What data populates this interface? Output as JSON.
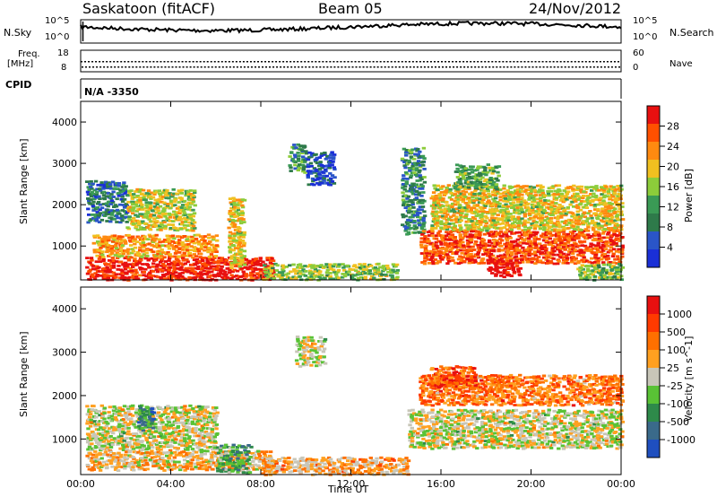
{
  "header": {
    "station": "Saskatoon (fitACF)",
    "beam": "Beam 05",
    "date": "24/Nov/2012"
  },
  "aux": {
    "nsky_label": "N.Sky",
    "nsky_ticks": [
      "10^5",
      "10^0"
    ],
    "nsearch_label": "N.Search",
    "nsearch_ticks": [
      "10^5",
      "10^0"
    ],
    "freq_label": "Freq.",
    "freq_unit": "[MHz]",
    "freq_ticks": [
      "18",
      "8"
    ],
    "nave_label": "Nave",
    "nave_ticks": [
      "60",
      "0"
    ],
    "cpid_label": "CPID",
    "cpid_value": "N/A -3350"
  },
  "colors": {
    "power": [
      "#1a2fd6",
      "#2a55c8",
      "#2e7a4a",
      "#3a9a55",
      "#8ccc3a",
      "#f0c020",
      "#ff8a10",
      "#ff5000",
      "#e81010"
    ],
    "velocity": [
      "#1f4fbf",
      "#3a6a8a",
      "#2e8a4a",
      "#59c235",
      "#c8c6b8",
      "#ffa020",
      "#ff7000",
      "#ff3a00",
      "#e81010"
    ],
    "grey": "#c8c6b8"
  },
  "chart_data": [
    {
      "type": "heatmap",
      "name": "power",
      "xlabel": "Time UT",
      "ylabel": "Slant Range [km]",
      "colorbar_label": "Power [dB]",
      "colorbar_ticks": [
        "28",
        "24",
        "20",
        "16",
        "12",
        "8",
        "4"
      ],
      "y_ticks": [
        "4000",
        "3000",
        "2000",
        "1000"
      ],
      "ylim": [
        180,
        4500
      ],
      "xlim": [
        0,
        24
      ],
      "regions": [
        {
          "t0": 0.2,
          "t1": 8.5,
          "r0": 200,
          "r1": 750,
          "level": 0.95
        },
        {
          "t0": 0.5,
          "t1": 6.0,
          "r0": 750,
          "r1": 1300,
          "level": 0.7
        },
        {
          "t0": 0.2,
          "t1": 2.0,
          "r0": 1600,
          "r1": 2600,
          "level": 0.25
        },
        {
          "t0": 2.0,
          "t1": 5.0,
          "r0": 1400,
          "r1": 2400,
          "level": 0.55
        },
        {
          "t0": 6.5,
          "t1": 7.2,
          "r0": 500,
          "r1": 2200,
          "level": 0.6
        },
        {
          "t0": 8.0,
          "t1": 14.0,
          "r0": 200,
          "r1": 600,
          "level": 0.5
        },
        {
          "t0": 9.2,
          "t1": 10.0,
          "r0": 2800,
          "r1": 3500,
          "level": 0.35
        },
        {
          "t0": 10.0,
          "t1": 11.2,
          "r0": 2500,
          "r1": 3300,
          "level": 0.15
        },
        {
          "t0": 14.2,
          "t1": 15.2,
          "r0": 1300,
          "r1": 3400,
          "level": 0.3
        },
        {
          "t0": 15.0,
          "t1": 24.0,
          "r0": 600,
          "r1": 1400,
          "level": 0.85
        },
        {
          "t0": 15.5,
          "t1": 24.0,
          "r0": 1400,
          "r1": 2500,
          "level": 0.6
        },
        {
          "t0": 16.5,
          "t1": 18.5,
          "r0": 2400,
          "r1": 3000,
          "level": 0.4
        },
        {
          "t0": 18.0,
          "t1": 19.5,
          "r0": 280,
          "r1": 700,
          "level": 1.0
        },
        {
          "t0": 22.0,
          "t1": 24.0,
          "r0": 200,
          "r1": 600,
          "level": 0.45
        }
      ]
    },
    {
      "type": "heatmap",
      "name": "velocity",
      "xlabel": "Time UT",
      "ylabel": "Slant Range [km]",
      "colorbar_label": "Velocity [m s^-1]",
      "colorbar_ticks": [
        "1000",
        "500",
        "100",
        "25",
        "-25",
        "-100",
        "-500",
        "-1000"
      ],
      "y_ticks": [
        "4000",
        "3000",
        "2000",
        "1000"
      ],
      "ylim": [
        180,
        4500
      ],
      "xlim": [
        0,
        24
      ],
      "x_ticks": [
        "00:00",
        "04:00",
        "08:00",
        "12:00",
        "16:00",
        "20:00",
        "00:00"
      ],
      "regions": [
        {
          "t0": 0.2,
          "t1": 6.0,
          "r0": 750,
          "r1": 1800,
          "level": 0.5
        },
        {
          "t0": 0.2,
          "t1": 8.5,
          "r0": 300,
          "r1": 750,
          "level": 0.58
        },
        {
          "t0": 2.5,
          "t1": 3.2,
          "r0": 1200,
          "r1": 1800,
          "level": 0.25
        },
        {
          "t0": 6.0,
          "t1": 7.5,
          "r0": 250,
          "r1": 900,
          "level": 0.35
        },
        {
          "t0": 8.0,
          "t1": 14.5,
          "r0": 200,
          "r1": 600,
          "level": 0.62
        },
        {
          "t0": 9.5,
          "t1": 10.8,
          "r0": 2700,
          "r1": 3400,
          "level": 0.5
        },
        {
          "t0": 14.5,
          "t1": 24.0,
          "r0": 800,
          "r1": 1700,
          "level": 0.5
        },
        {
          "t0": 15.0,
          "t1": 24.0,
          "r0": 1800,
          "r1": 2500,
          "level": 0.72
        },
        {
          "t0": 15.5,
          "t1": 17.5,
          "r0": 2200,
          "r1": 2700,
          "level": 0.8
        }
      ]
    }
  ]
}
